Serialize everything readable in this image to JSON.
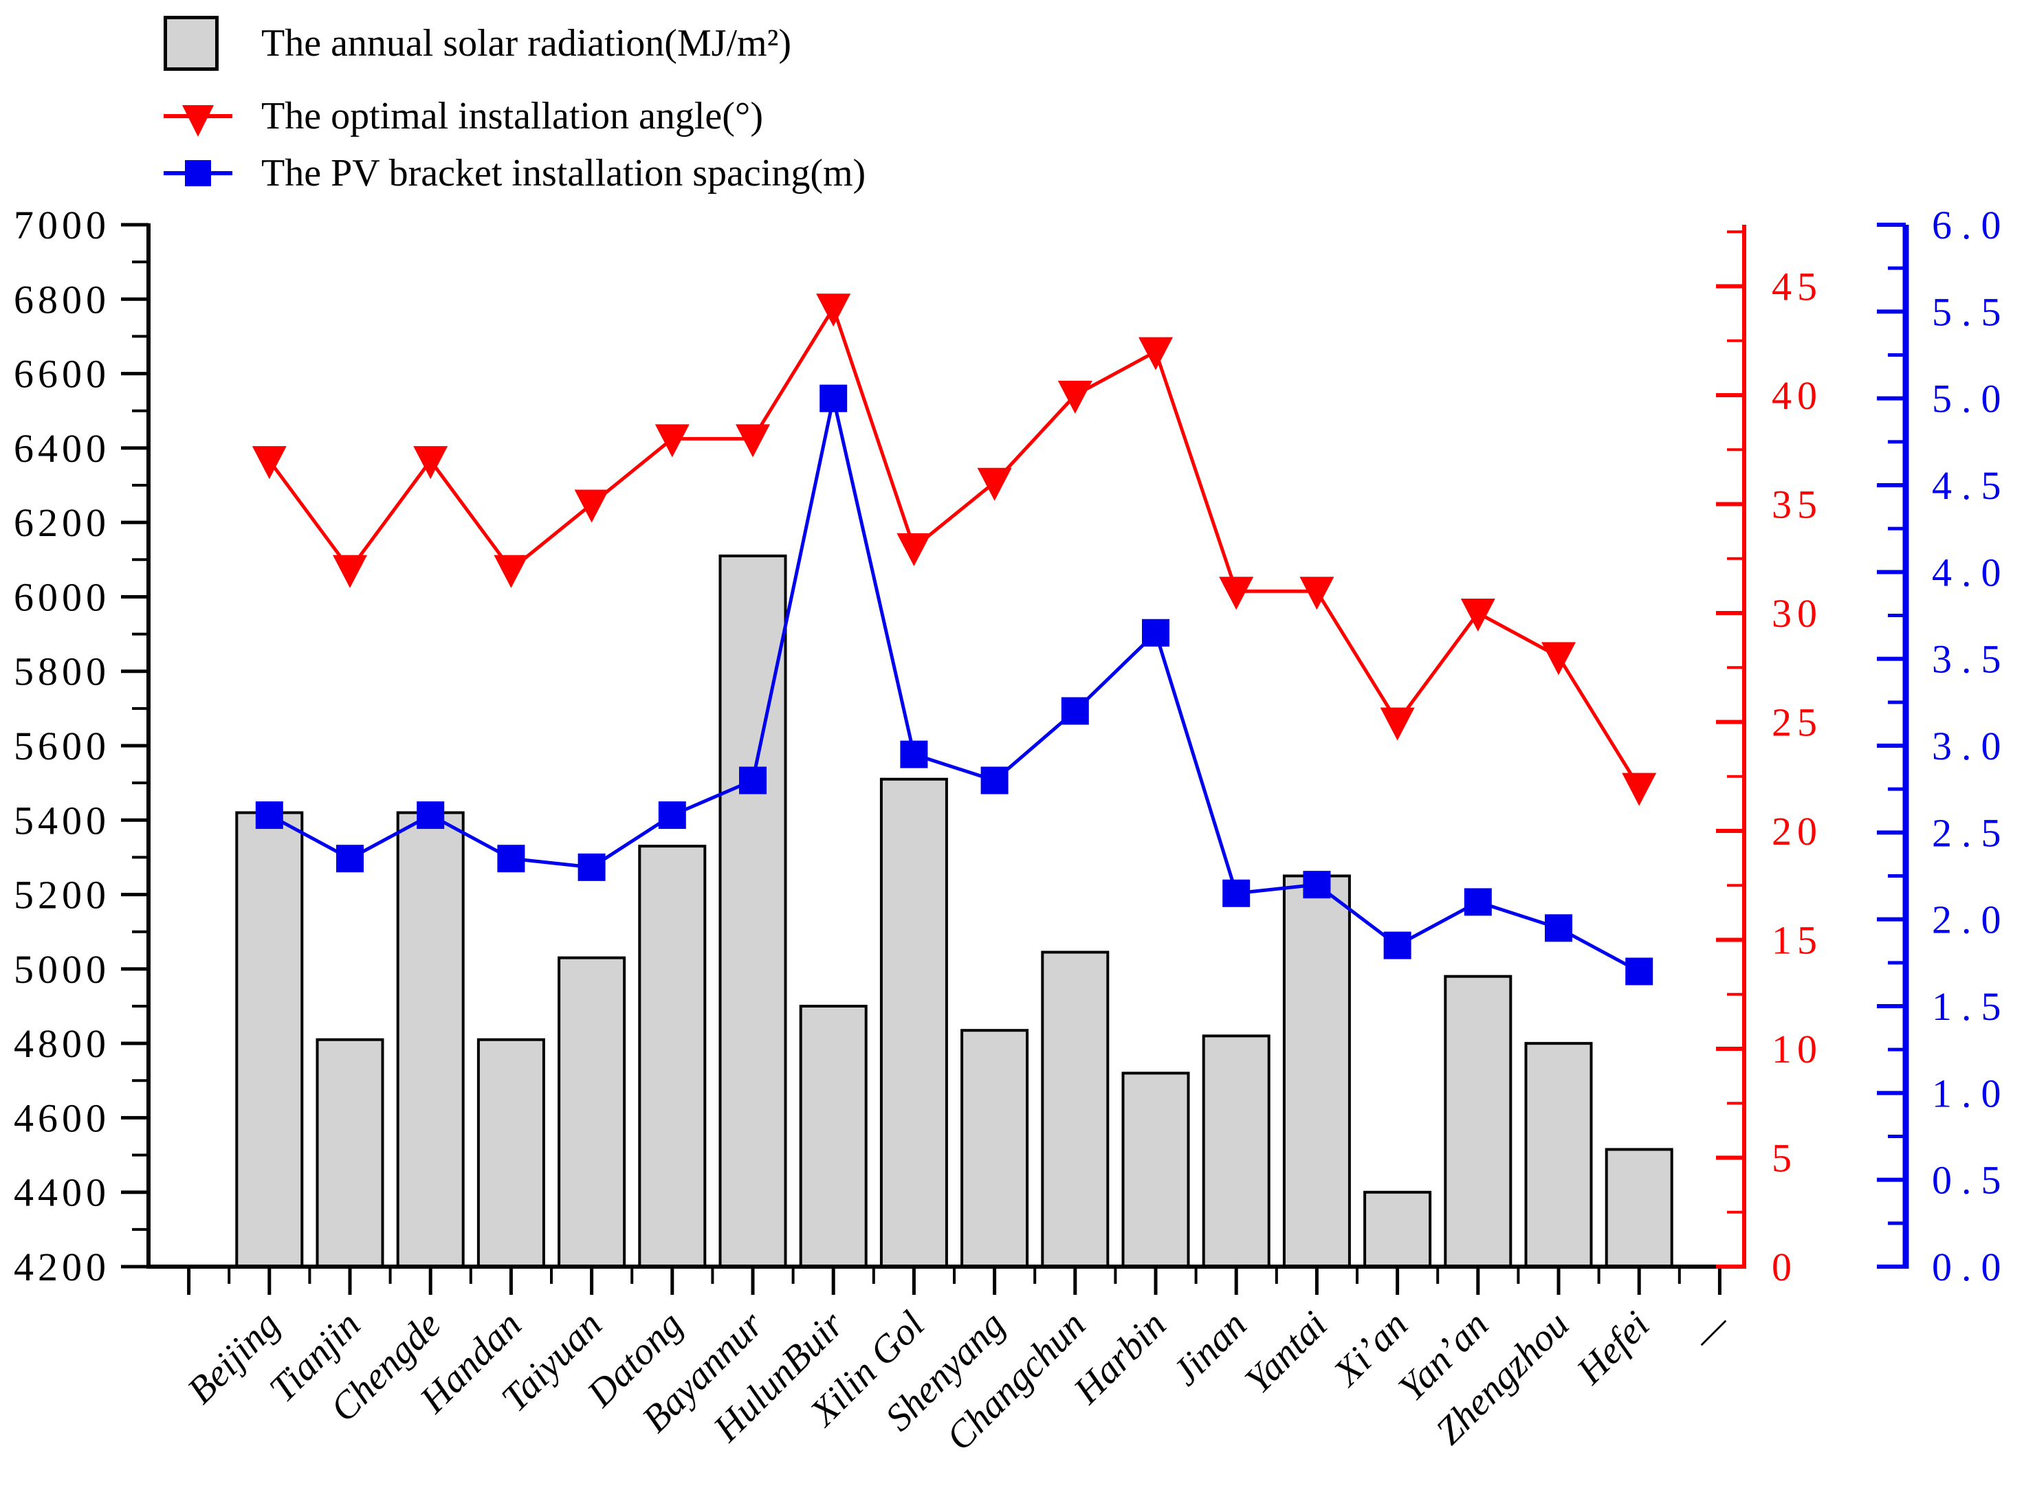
{
  "legend": {
    "items": [
      {
        "label": "The annual solar radiation(MJ/m²)",
        "marker": "gray-box"
      },
      {
        "label": "The optimal installation angle(°)",
        "marker": "red-triangle-line"
      },
      {
        "label": "The PV bracket installation spacing(m)",
        "marker": "blue-square-line"
      }
    ]
  },
  "chart_data": {
    "type": "bar",
    "subtype": "bar+line combo, three independent y axes",
    "title": "",
    "xlabel": "",
    "grid": false,
    "legend_position": "top-left",
    "categories": [
      "Beijing",
      "Tianjin",
      "Chengde",
      "Handan",
      "Taiyuan",
      "Datong",
      "Bayannur",
      "HulunBuir",
      "Xilin Gol",
      "Shenyang",
      "Changchun",
      "Harbin",
      "Jinan",
      "Yantai",
      "Xi’an",
      "Yan’an",
      "Zhengzhou",
      "Hefei",
      "—"
    ],
    "series": [
      {
        "name": "The annual solar radiation(MJ/m²)",
        "type": "bar",
        "axis": "left",
        "color": "#d3d3d3",
        "edge_color": "#000000",
        "values": [
          5420,
          4810,
          5420,
          4810,
          5030,
          5330,
          6110,
          4900,
          5510,
          4835,
          5045,
          4720,
          4820,
          5250,
          4400,
          4980,
          4800,
          4515,
          null
        ]
      },
      {
        "name": "The optimal installation angle(°)",
        "type": "line",
        "axis": "right_red",
        "color": "#ff0000",
        "marker": "triangle-down",
        "values": [
          37,
          32,
          37,
          32,
          35,
          38,
          38,
          44,
          33,
          36,
          40,
          42,
          31,
          31,
          25,
          30,
          28,
          22,
          null
        ]
      },
      {
        "name": "The PV bracket installation spacing(m)",
        "type": "line",
        "axis": "right_blue",
        "color": "#0000ee",
        "marker": "square",
        "values": [
          2.6,
          2.35,
          2.6,
          2.35,
          2.3,
          2.6,
          2.8,
          5.0,
          2.95,
          2.8,
          3.2,
          3.65,
          2.15,
          2.2,
          1.85,
          2.1,
          1.95,
          1.7,
          null
        ]
      }
    ],
    "axes": {
      "left": {
        "min": 4200,
        "max": 7000,
        "major": 200,
        "minor": 100,
        "color": "#000000",
        "tick_labels": [
          "4200",
          "4400",
          "4600",
          "4800",
          "5000",
          "5200",
          "5400",
          "5600",
          "5800",
          "6000",
          "6200",
          "6400",
          "6600",
          "6800",
          "7000"
        ]
      },
      "right_red": {
        "min": 0,
        "max": 47.5,
        "major": 5,
        "minor": 2.5,
        "color": "#ff0000",
        "tick_labels": [
          "0",
          "5",
          "10",
          "15",
          "20",
          "25",
          "30",
          "35",
          "40",
          "45"
        ]
      },
      "right_blue": {
        "min": 0.0,
        "max": 6.0,
        "major": 0.5,
        "minor": 0.25,
        "color": "#0000ee",
        "tick_labels": [
          "0.0",
          "0.5",
          "1.0",
          "1.5",
          "2.0",
          "2.5",
          "3.0",
          "3.5",
          "4.0",
          "4.5",
          "5.0",
          "5.5",
          "6.0"
        ]
      }
    }
  }
}
